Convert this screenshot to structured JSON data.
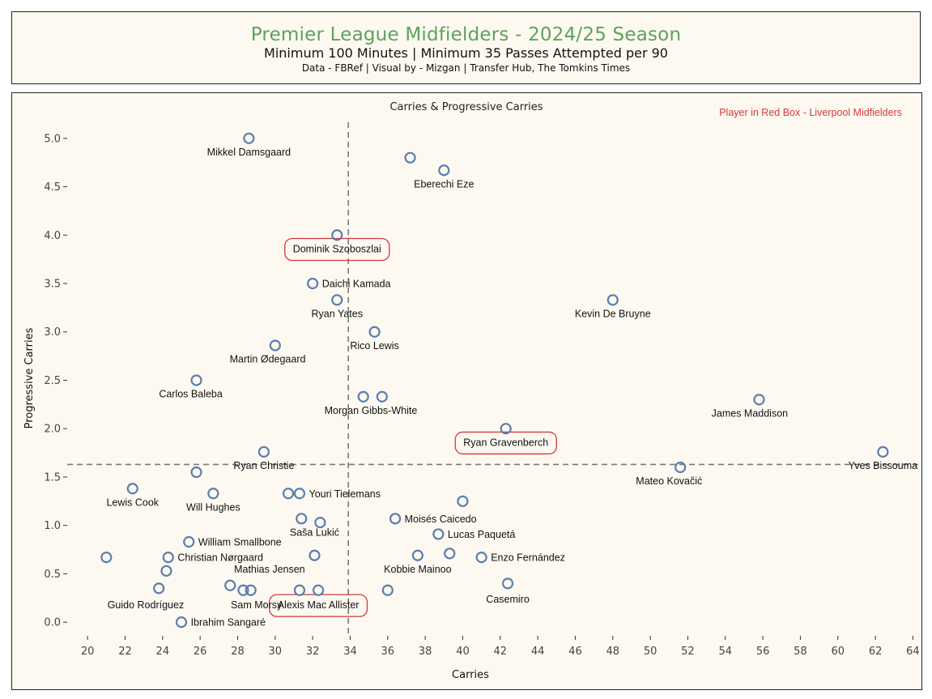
{
  "header": {
    "title": "Premier League Midfielders - 2024/25 Season",
    "subtitle": "Minimum 100 Minutes | Minimum 35 Passes Attempted per 90",
    "credit": "Data - FBRef | Visual by - Mizgan | Transfer Hub, The Tomkins Times"
  },
  "colors": {
    "title": "#5ba35a",
    "marker": "#5a7fae",
    "highlight_box": "#d43a3a",
    "reference_line": "#7a7a7a",
    "background": "#fdf9f1"
  },
  "chart_data": {
    "type": "scatter",
    "title": "Carries & Progressive Carries",
    "xlabel": "Carries",
    "ylabel": "Progressive Carries",
    "xlim": [
      19,
      64.5
    ],
    "ylim": [
      -0.3,
      5.4
    ],
    "x_ticks": [
      20,
      22,
      24,
      26,
      28,
      30,
      32,
      34,
      36,
      38,
      40,
      42,
      44,
      46,
      48,
      50,
      52,
      54,
      56,
      58,
      60,
      62,
      64
    ],
    "y_ticks": [
      0.0,
      0.5,
      1.0,
      1.5,
      2.0,
      2.5,
      3.0,
      3.5,
      4.0,
      4.5,
      5.0
    ],
    "y_tick_labels": [
      "0.0",
      "0.5",
      "1.0",
      "1.5",
      "2.0",
      "2.5",
      "3.0",
      "3.5",
      "4.0",
      "4.5",
      "5.0"
    ],
    "reference_lines": {
      "x": 33.9,
      "y": 1.63
    },
    "note": "Player in Red Box - Liverpool Midfielders",
    "grid": false,
    "points": [
      {
        "x": 28.6,
        "y": 5.0,
        "label": "Mikkel Damsgaard",
        "lx": 28.6,
        "ly": 4.86,
        "anchor": "middle"
      },
      {
        "x": 37.2,
        "y": 4.8,
        "label": "",
        "lx": 0,
        "ly": 0,
        "anchor": "middle"
      },
      {
        "x": 39.0,
        "y": 4.67,
        "label": "Eberechi Eze",
        "lx": 39.0,
        "ly": 4.53,
        "anchor": "middle"
      },
      {
        "x": 33.3,
        "y": 4.0,
        "label": "Dominik Szoboszlai",
        "lx": 33.3,
        "ly": 3.86,
        "anchor": "middle",
        "highlight": true
      },
      {
        "x": 32.0,
        "y": 3.5,
        "label": "Daichi Kamada",
        "lx": 32.5,
        "ly": 3.5,
        "anchor": "start"
      },
      {
        "x": 33.3,
        "y": 3.33,
        "label": "Ryan Yates",
        "lx": 33.3,
        "ly": 3.19,
        "anchor": "middle"
      },
      {
        "x": 48.0,
        "y": 3.33,
        "label": "Kevin De Bruyne",
        "lx": 48.0,
        "ly": 3.19,
        "anchor": "middle"
      },
      {
        "x": 35.3,
        "y": 3.0,
        "label": "Rico Lewis",
        "lx": 35.3,
        "ly": 2.86,
        "anchor": "middle"
      },
      {
        "x": 30.0,
        "y": 2.86,
        "label": "Martin Ødegaard",
        "lx": 29.6,
        "ly": 2.72,
        "anchor": "middle"
      },
      {
        "x": 25.8,
        "y": 2.5,
        "label": "Carlos Baleba",
        "lx": 25.5,
        "ly": 2.36,
        "anchor": "middle"
      },
      {
        "x": 34.7,
        "y": 2.33,
        "label": "",
        "lx": 0,
        "ly": 0,
        "anchor": "middle"
      },
      {
        "x": 35.7,
        "y": 2.33,
        "label": "Morgan Gibbs-White",
        "lx": 35.1,
        "ly": 2.19,
        "anchor": "middle"
      },
      {
        "x": 55.8,
        "y": 2.3,
        "label": "James Maddison",
        "lx": 55.3,
        "ly": 2.16,
        "anchor": "middle"
      },
      {
        "x": 42.3,
        "y": 2.0,
        "label": "Ryan Gravenberch",
        "lx": 42.3,
        "ly": 1.86,
        "anchor": "middle",
        "highlight": true
      },
      {
        "x": 29.4,
        "y": 1.76,
        "label": "Ryan Christie",
        "lx": 29.4,
        "ly": 1.62,
        "anchor": "middle"
      },
      {
        "x": 62.4,
        "y": 1.76,
        "label": "Yves Bissouma",
        "lx": 62.4,
        "ly": 1.62,
        "anchor": "middle"
      },
      {
        "x": 51.6,
        "y": 1.6,
        "label": "Mateo Kovačić",
        "lx": 51.0,
        "ly": 1.46,
        "anchor": "middle"
      },
      {
        "x": 25.8,
        "y": 1.55,
        "label": "",
        "lx": 0,
        "ly": 0,
        "anchor": "middle"
      },
      {
        "x": 22.4,
        "y": 1.38,
        "label": "Lewis Cook",
        "lx": 22.4,
        "ly": 1.24,
        "anchor": "middle"
      },
      {
        "x": 26.7,
        "y": 1.33,
        "label": "Will Hughes",
        "lx": 26.7,
        "ly": 1.19,
        "anchor": "middle"
      },
      {
        "x": 30.7,
        "y": 1.33,
        "label": "",
        "lx": 0,
        "ly": 0,
        "anchor": "middle"
      },
      {
        "x": 31.3,
        "y": 1.33,
        "label": "Youri Tielemans",
        "lx": 31.8,
        "ly": 1.33,
        "anchor": "start"
      },
      {
        "x": 40.0,
        "y": 1.25,
        "label": "",
        "lx": 0,
        "ly": 0,
        "anchor": "middle"
      },
      {
        "x": 31.4,
        "y": 1.07,
        "label": "Saša Lukić",
        "lx": 32.1,
        "ly": 0.93,
        "anchor": "middle"
      },
      {
        "x": 32.4,
        "y": 1.03,
        "label": "",
        "lx": 0,
        "ly": 0,
        "anchor": "middle"
      },
      {
        "x": 36.4,
        "y": 1.07,
        "label": "Moisés Caicedo",
        "lx": 36.9,
        "ly": 1.07,
        "anchor": "start"
      },
      {
        "x": 38.7,
        "y": 0.91,
        "label": "Lucas Paquetá",
        "lx": 39.2,
        "ly": 0.91,
        "anchor": "start"
      },
      {
        "x": 25.4,
        "y": 0.83,
        "label": "William Smallbone",
        "lx": 25.9,
        "ly": 0.83,
        "anchor": "start"
      },
      {
        "x": 21.0,
        "y": 0.67,
        "label": "",
        "lx": 0,
        "ly": 0,
        "anchor": "middle"
      },
      {
        "x": 24.3,
        "y": 0.67,
        "label": "Christian Nørgaard",
        "lx": 24.8,
        "ly": 0.67,
        "anchor": "start"
      },
      {
        "x": 32.1,
        "y": 0.69,
        "label": "Mathias Jensen",
        "lx": 29.7,
        "ly": 0.55,
        "anchor": "middle"
      },
      {
        "x": 37.6,
        "y": 0.69,
        "label": "Kobbie Mainoo",
        "lx": 37.6,
        "ly": 0.55,
        "anchor": "middle"
      },
      {
        "x": 39.3,
        "y": 0.71,
        "label": "",
        "lx": 0,
        "ly": 0,
        "anchor": "middle"
      },
      {
        "x": 41.0,
        "y": 0.67,
        "label": "Enzo Fernández",
        "lx": 41.5,
        "ly": 0.67,
        "anchor": "start"
      },
      {
        "x": 24.2,
        "y": 0.53,
        "label": "",
        "lx": 0,
        "ly": 0,
        "anchor": "middle"
      },
      {
        "x": 23.8,
        "y": 0.35,
        "label": "Guido Rodríguez",
        "lx": 23.1,
        "ly": 0.18,
        "anchor": "middle"
      },
      {
        "x": 27.6,
        "y": 0.38,
        "label": "",
        "lx": 0,
        "ly": 0,
        "anchor": "middle"
      },
      {
        "x": 28.3,
        "y": 0.33,
        "label": "",
        "lx": 0,
        "ly": 0,
        "anchor": "middle"
      },
      {
        "x": 28.7,
        "y": 0.33,
        "label": "Sam Morsy",
        "lx": 29.0,
        "ly": 0.18,
        "anchor": "middle"
      },
      {
        "x": 31.3,
        "y": 0.33,
        "label": "",
        "lx": 0,
        "ly": 0,
        "anchor": "middle"
      },
      {
        "x": 32.3,
        "y": 0.33,
        "label": "Alexis Mac Allister",
        "lx": 32.3,
        "ly": 0.18,
        "anchor": "middle",
        "highlight": true
      },
      {
        "x": 36.0,
        "y": 0.33,
        "label": "",
        "lx": 0,
        "ly": 0,
        "anchor": "middle"
      },
      {
        "x": 42.4,
        "y": 0.4,
        "label": "Casemiro",
        "lx": 42.4,
        "ly": 0.24,
        "anchor": "middle"
      },
      {
        "x": 25.0,
        "y": 0.0,
        "label": "Ibrahim Sangaré",
        "lx": 25.5,
        "ly": 0.0,
        "anchor": "start"
      }
    ]
  }
}
